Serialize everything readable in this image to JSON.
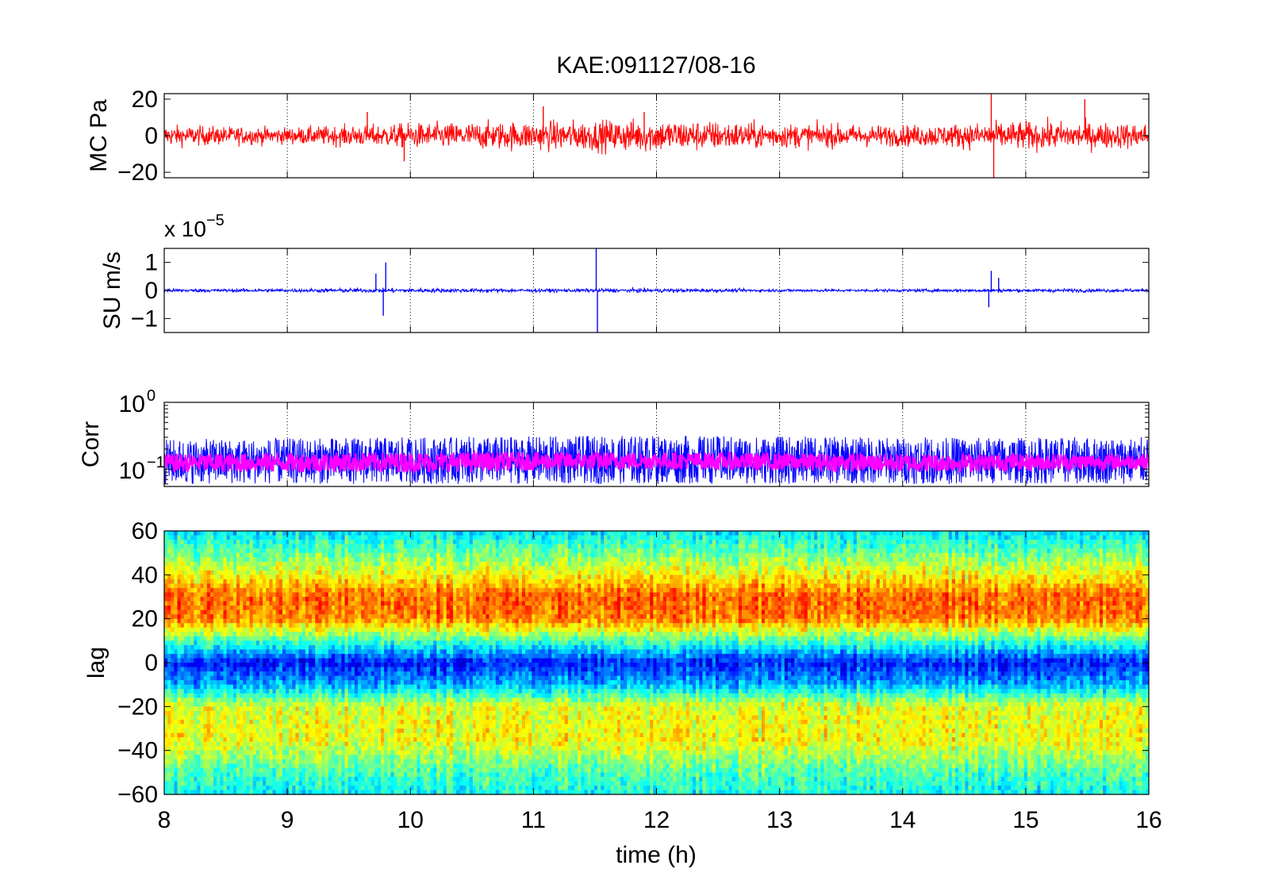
{
  "figure": {
    "title": "KAE:091127/08-16",
    "xlabel": "time (h)",
    "xlim": [
      8,
      16
    ],
    "xticks": [
      "8",
      "9",
      "10",
      "11",
      "12",
      "13",
      "14",
      "15",
      "16"
    ],
    "grid": "dotted vertical lines at each hour"
  },
  "chart_data": [
    {
      "type": "line",
      "panel": "MC",
      "ylabel": "MC Pa",
      "ylim": [
        -23,
        23
      ],
      "yticks": [
        "20",
        "0",
        "−20"
      ],
      "series": [
        {
          "color": "#ff0000",
          "summary": "dense noise trace centred on 0 Pa, typical amplitude about ±5 Pa",
          "x": [
            8,
            9,
            10,
            11,
            12,
            13,
            14,
            15,
            16
          ],
          "y": [
            0,
            0,
            0,
            0,
            0,
            0,
            0,
            0,
            0
          ],
          "approx_envelope": [
            5,
            4,
            6,
            7,
            8,
            6,
            5,
            7,
            6
          ],
          "spikes": [
            {
              "x": 9.65,
              "y": 13
            },
            {
              "x": 9.95,
              "y": -14
            },
            {
              "x": 11.08,
              "y": 16
            },
            {
              "x": 11.9,
              "y": 13
            },
            {
              "x": 14.72,
              "y": 23
            },
            {
              "x": 14.74,
              "y": -23
            },
            {
              "x": 15.48,
              "y": 20
            }
          ]
        }
      ]
    },
    {
      "type": "line",
      "panel": "SU",
      "ylabel": "SU m/s",
      "exponent_label": "x 10",
      "exponent_power": "−5",
      "ylim": [
        -1.5,
        1.5
      ],
      "yticks": [
        "1",
        "0",
        "−1"
      ],
      "series": [
        {
          "color": "#0000ff",
          "summary": "velocity trace near 0 with transient bursts (units of 1e-5 m/s)",
          "x": [
            8,
            9,
            10,
            11,
            12,
            13,
            14,
            15,
            16
          ],
          "y": [
            0,
            0,
            0,
            0,
            0,
            0,
            0,
            0,
            0
          ],
          "approx_envelope": [
            0.06,
            0.06,
            0.08,
            0.06,
            0.07,
            0.05,
            0.05,
            0.06,
            0.06
          ],
          "spikes": [
            {
              "x": 9.72,
              "y": 0.6
            },
            {
              "x": 9.78,
              "y": -0.9
            },
            {
              "x": 9.8,
              "y": 1.0
            },
            {
              "x": 11.51,
              "y": 1.5
            },
            {
              "x": 11.52,
              "y": -1.5
            },
            {
              "x": 14.7,
              "y": -0.6
            },
            {
              "x": 14.72,
              "y": 0.7
            },
            {
              "x": 14.78,
              "y": 0.45
            }
          ]
        }
      ]
    },
    {
      "type": "line",
      "panel": "Corr",
      "ylabel": "Corr",
      "yscale": "log",
      "ylim": [
        0.055,
        1
      ],
      "yticks": [
        "10^0",
        "10^−1"
      ],
      "series": [
        {
          "color": "#0000ff",
          "summary": "raw correlation, roughly 0.06 to 0.3",
          "x": [
            8,
            10,
            12,
            14,
            16
          ],
          "y_low": [
            0.06,
            0.06,
            0.06,
            0.06,
            0.06
          ],
          "y_high": [
            0.28,
            0.3,
            0.32,
            0.3,
            0.3
          ]
        },
        {
          "color": "#ff00ff",
          "summary": "smoothed correlation, roughly 0.09 to 0.18",
          "x": [
            8,
            10,
            12,
            14,
            16
          ],
          "y_low": [
            0.09,
            0.09,
            0.1,
            0.09,
            0.1
          ],
          "y_high": [
            0.17,
            0.18,
            0.18,
            0.17,
            0.17
          ]
        }
      ]
    },
    {
      "type": "heatmap",
      "panel": "lag",
      "ylabel": "lag",
      "ylim": [
        -60,
        60
      ],
      "yticks": [
        "60",
        "40",
        "20",
        "0",
        "−20",
        "−40",
        "−60"
      ],
      "colormap": "jet",
      "summary": "correlation vs lag: band of high values (orange/red) at about +15 to +40, low (blue) centred near 0 to -5, moderate (yellow) at -15 to -40, cyan/green at the edges",
      "bands": [
        {
          "lag": 60,
          "level": 0.35
        },
        {
          "lag": 45,
          "level": 0.55
        },
        {
          "lag": 30,
          "level": 0.78
        },
        {
          "lag": 20,
          "level": 0.75
        },
        {
          "lag": 10,
          "level": 0.45
        },
        {
          "lag": 0,
          "level": 0.15
        },
        {
          "lag": -10,
          "level": 0.3
        },
        {
          "lag": -20,
          "level": 0.6
        },
        {
          "lag": -35,
          "level": 0.62
        },
        {
          "lag": -50,
          "level": 0.45
        },
        {
          "lag": -60,
          "level": 0.38
        }
      ]
    }
  ]
}
